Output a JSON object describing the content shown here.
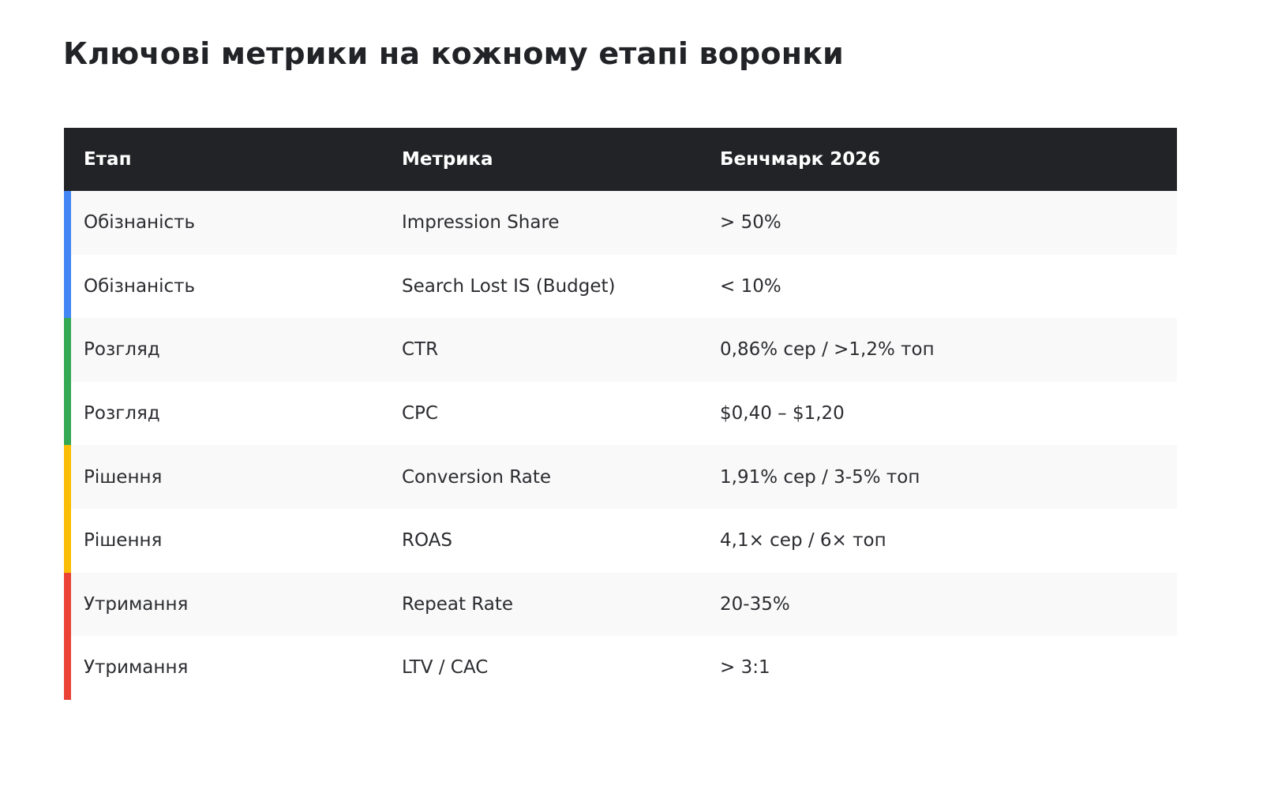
{
  "page": {
    "title": "Ключові метрики на кожному етапі воронки"
  },
  "table": {
    "headers": [
      "Етап",
      "Метрика",
      "Бенчмарк 2026"
    ],
    "rows": [
      {
        "stage": "Обізнаність",
        "metric": "Impression Share",
        "benchmark": "> 50%",
        "color": "#4285F4"
      },
      {
        "stage": "Обізнаність",
        "metric": "Search Lost IS (Budget)",
        "benchmark": "< 10%",
        "color": "#4285F4"
      },
      {
        "stage": "Розгляд",
        "metric": "CTR",
        "benchmark": "0,86% сер / >1,2% топ",
        "color": "#34A853"
      },
      {
        "stage": "Розгляд",
        "metric": "CPC",
        "benchmark": "$0,40 – $1,20",
        "color": "#34A853"
      },
      {
        "stage": "Рішення",
        "metric": "Conversion Rate",
        "benchmark": "1,91% сер / 3-5% топ",
        "color": "#FBBC04"
      },
      {
        "stage": "Рішення",
        "metric": "ROAS",
        "benchmark": "4,1× сер / 6× топ",
        "color": "#FBBC04"
      },
      {
        "stage": "Утримання",
        "metric": "Repeat Rate",
        "benchmark": "20-35%",
        "color": "#EA4335"
      },
      {
        "stage": "Утримання",
        "metric": "LTV / CAC",
        "benchmark": "> 3:1",
        "color": "#EA4335"
      }
    ]
  },
  "colors": {
    "header_bg": "#222326",
    "zebra_row": "#f9f9f9",
    "text": "#222326"
  }
}
